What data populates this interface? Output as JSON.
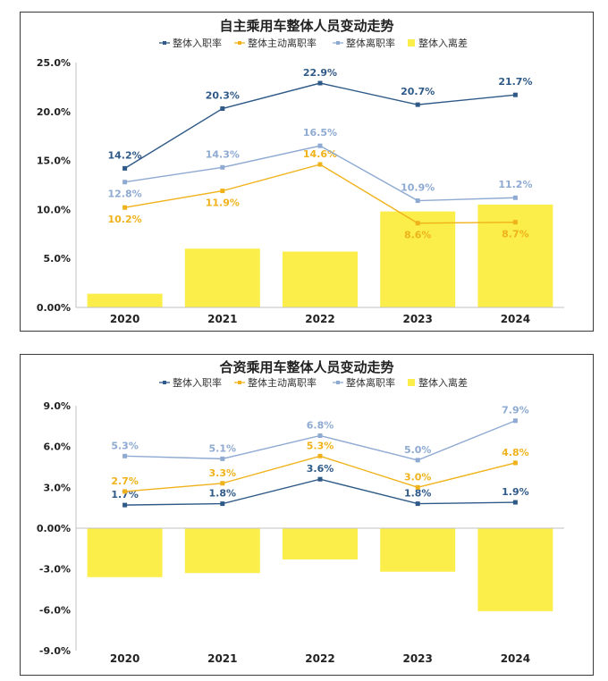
{
  "chart_data": [
    {
      "type": "bar",
      "title": "自主乘用车整体人员变动走势",
      "categories": [
        "2020",
        "2021",
        "2022",
        "2023",
        "2024"
      ],
      "ylim": [
        0,
        25
      ],
      "yticks": [
        "0.00%",
        "5.0%",
        "10.0%",
        "15.0%",
        "20.0%",
        "25.0%"
      ],
      "ytick_values": [
        0,
        5,
        10,
        15,
        20,
        25
      ],
      "legend_position": "top-center",
      "grid": false,
      "series": [
        {
          "name": "整体入职率",
          "kind": "line",
          "color": "#2f5a88",
          "values": [
            14.2,
            20.3,
            22.9,
            20.7,
            21.7
          ],
          "labels": [
            "14.2%",
            "20.3%",
            "22.9%",
            "20.7%",
            "21.7%"
          ]
        },
        {
          "name": "整体主动离职率",
          "kind": "line",
          "color": "#f0b21a",
          "values": [
            10.2,
            11.9,
            14.6,
            8.6,
            8.7
          ],
          "labels": [
            "10.2%",
            "11.9%",
            "14.6%",
            "8.6%",
            "8.7%"
          ]
        },
        {
          "name": "整体离职率",
          "kind": "line",
          "color": "#8eaad2",
          "values": [
            12.8,
            14.3,
            16.5,
            10.9,
            11.2
          ],
          "labels": [
            "12.8%",
            "14.3%",
            "16.5%",
            "10.9%",
            "11.2%"
          ]
        },
        {
          "name": "整体入离差",
          "kind": "bar",
          "color": "#fbee4a",
          "values": [
            1.4,
            6.0,
            5.7,
            9.8,
            10.5
          ],
          "labels": []
        }
      ]
    },
    {
      "type": "bar",
      "title": "合资乘用车整体人员变动走势",
      "categories": [
        "2020",
        "2021",
        "2022",
        "2023",
        "2024"
      ],
      "ylim": [
        -9,
        9
      ],
      "yticks": [
        "-9.0%",
        "-6.0%",
        "-3.0%",
        "0.00%",
        "3.0%",
        "6.0%",
        "9.0%"
      ],
      "ytick_values": [
        -9,
        -6,
        -3,
        0,
        3,
        6,
        9
      ],
      "legend_position": "top-center",
      "grid": false,
      "series": [
        {
          "name": "整体入职率",
          "kind": "line",
          "color": "#2f5a88",
          "values": [
            1.7,
            1.8,
            3.6,
            1.8,
            1.9
          ],
          "labels": [
            "1.7%",
            "1.8%",
            "3.6%",
            "1.8%",
            "1.9%"
          ]
        },
        {
          "name": "整体主动离职率",
          "kind": "line",
          "color": "#f0b21a",
          "values": [
            2.7,
            3.3,
            5.3,
            3.0,
            4.8
          ],
          "labels": [
            "2.7%",
            "3.3%",
            "5.3%",
            "3.0%",
            "4.8%"
          ]
        },
        {
          "name": "整体离职率",
          "kind": "line",
          "color": "#8eaad2",
          "values": [
            5.3,
            5.1,
            6.8,
            5.0,
            7.9
          ],
          "labels": [
            "5.3%",
            "5.1%",
            "6.8%",
            "5.0%",
            "7.9%"
          ]
        },
        {
          "name": "整体入离差",
          "kind": "bar",
          "color": "#fbee4a",
          "values": [
            -3.6,
            -3.3,
            -2.3,
            -3.2,
            -6.1
          ],
          "labels": []
        }
      ]
    }
  ]
}
